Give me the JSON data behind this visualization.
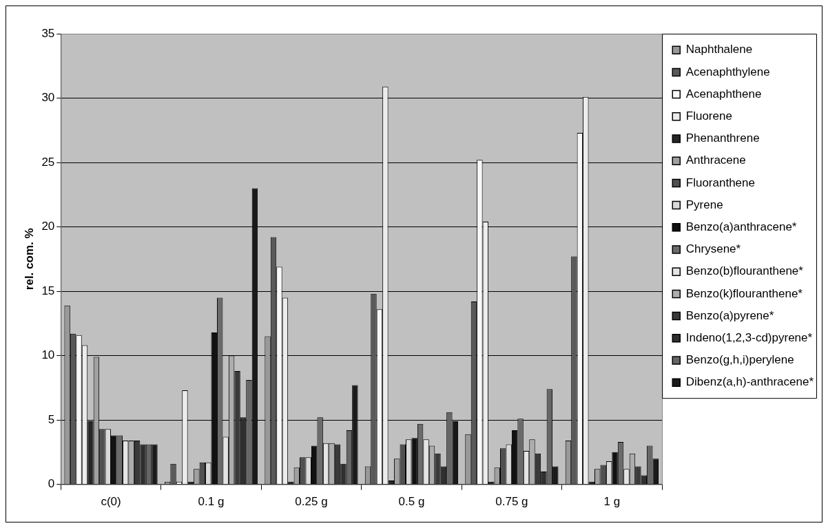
{
  "chart_data": {
    "type": "bar",
    "ylabel": "rel. com. %",
    "categories": [
      "c(0)",
      "0.1 g",
      "0.25 g",
      "0.5 g",
      "0.75 g",
      "1 g"
    ],
    "ylim": [
      0,
      35
    ],
    "yticks": [
      0,
      5,
      10,
      15,
      20,
      25,
      30,
      35
    ],
    "grid": "y",
    "legend": "right",
    "series": [
      {
        "name": "Naphthalene",
        "color": "#999999",
        "values": [
          13.9,
          0.2,
          11.5,
          1.4,
          3.9,
          3.4
        ]
      },
      {
        "name": "Acenaphthylene",
        "color": "#595959",
        "values": [
          11.7,
          1.6,
          19.2,
          14.8,
          14.2,
          17.7
        ]
      },
      {
        "name": "Acenaphthene",
        "color": "#f8f8f8",
        "values": [
          11.6,
          0.2,
          16.9,
          13.6,
          25.2,
          27.3
        ]
      },
      {
        "name": "Fluorene",
        "color": "#ececec",
        "values": [
          10.8,
          7.3,
          14.5,
          30.9,
          20.4,
          30.1
        ]
      },
      {
        "name": "Phenanthrene",
        "color": "#262626",
        "values": [
          4.9,
          0.2,
          0.2,
          0.3,
          0.2,
          0.2
        ]
      },
      {
        "name": "Anthracene",
        "color": "#a0a0a0",
        "values": [
          9.9,
          1.2,
          1.3,
          2.0,
          1.3,
          1.2
        ]
      },
      {
        "name": "Fluoranthene",
        "color": "#505050",
        "values": [
          4.3,
          1.7,
          2.1,
          3.1,
          2.8,
          1.5
        ]
      },
      {
        "name": "Pyrene",
        "color": "#d9d9d9",
        "values": [
          4.3,
          1.7,
          2.1,
          3.5,
          3.1,
          1.8
        ]
      },
      {
        "name": "Benzo(a)anthracene*",
        "color": "#111111",
        "values": [
          3.8,
          11.8,
          3.0,
          3.6,
          4.2,
          2.5
        ]
      },
      {
        "name": "Chrysene*",
        "color": "#6b6b6b",
        "values": [
          3.8,
          14.5,
          5.2,
          4.7,
          5.1,
          3.3
        ]
      },
      {
        "name": "Benzo(b)flouranthene*",
        "color": "#e4e4e4",
        "values": [
          3.4,
          3.7,
          3.2,
          3.5,
          2.6,
          1.2
        ]
      },
      {
        "name": "Benzo(k)flouranthene*",
        "color": "#adadad",
        "values": [
          3.4,
          10.0,
          3.2,
          3.0,
          3.5,
          2.4
        ]
      },
      {
        "name": "Benzo(a)pyrene*",
        "color": "#3a3a3a",
        "values": [
          3.4,
          8.8,
          3.1,
          2.4,
          2.4,
          1.4
        ]
      },
      {
        "name": "Indeno(1,2,3-cd)pyrene*",
        "color": "#2f2f2f",
        "values": [
          3.1,
          5.2,
          1.6,
          1.4,
          1.0,
          0.7
        ]
      },
      {
        "name": "Benzo(g,h,i)perylene",
        "color": "#666666",
        "values": [
          3.1,
          8.1,
          4.2,
          5.6,
          7.4,
          3.0
        ]
      },
      {
        "name": "Dibenz(a,h)-anthracene*",
        "color": "#1a1a1a",
        "values": [
          3.1,
          23.0,
          7.7,
          4.9,
          1.4,
          2.0
        ]
      }
    ]
  }
}
